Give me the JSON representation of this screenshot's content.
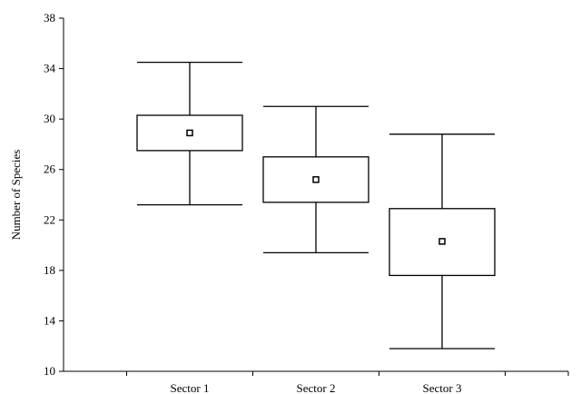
{
  "chart_data": {
    "type": "boxplot",
    "ylabel": "Number of Species",
    "ylim": [
      10,
      38
    ],
    "yticks": [
      10,
      14,
      18,
      22,
      26,
      30,
      34,
      38
    ],
    "categories": [
      "Sector 1",
      "Sector 2",
      "Sector 3"
    ],
    "boxes": [
      {
        "category": "Sector 1",
        "whisker_low": 23.2,
        "q1": 27.5,
        "q3": 30.3,
        "whisker_high": 34.5,
        "mean": 28.9
      },
      {
        "category": "Sector 2",
        "whisker_low": 19.4,
        "q1": 23.4,
        "q3": 27.0,
        "whisker_high": 31.0,
        "mean": 25.2
      },
      {
        "category": "Sector 3",
        "whisker_low": 11.8,
        "q1": 17.6,
        "q3": 22.9,
        "whisker_high": 28.8,
        "mean": 20.3
      }
    ],
    "grid": false,
    "legend": "none"
  }
}
